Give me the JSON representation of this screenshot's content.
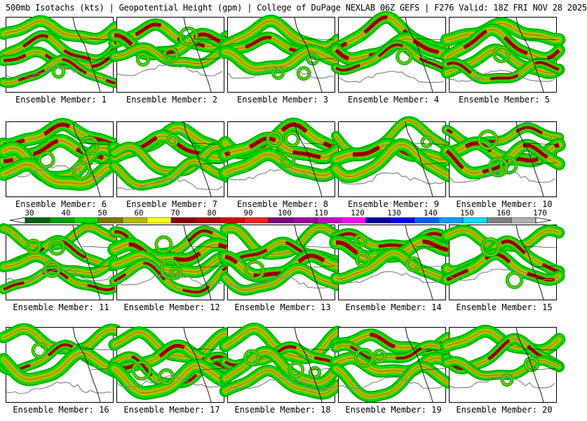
{
  "title": "500mb Isotachs (kts) | Geopotential Height (gpm) | College of DuPage NEXLAB   06Z GEFS | F276 Valid: 18Z FRI NOV 28 2025",
  "panels": [
    {
      "label": "Ensemble Member: 1"
    },
    {
      "label": "Ensemble Member: 2"
    },
    {
      "label": "Ensemble Member: 3"
    },
    {
      "label": "Ensemble Member: 4"
    },
    {
      "label": "Ensemble Member: 5"
    },
    {
      "label": "Ensemble Member: 6"
    },
    {
      "label": "Ensemble Member: 7"
    },
    {
      "label": "Ensemble Member: 8"
    },
    {
      "label": "Ensemble Member: 9"
    },
    {
      "label": "Ensemble Member: 10"
    },
    {
      "label": "Ensemble Member: 11"
    },
    {
      "label": "Ensemble Member: 12"
    },
    {
      "label": "Ensemble Member: 13"
    },
    {
      "label": "Ensemble Member: 14"
    },
    {
      "label": "Ensemble Member: 15"
    },
    {
      "label": "Ensemble Member: 16"
    },
    {
      "label": "Ensemble Member: 17"
    },
    {
      "label": "Ensemble Member: 18"
    },
    {
      "label": "Ensemble Member: 19"
    },
    {
      "label": "Ensemble Member: 20"
    }
  ],
  "colorbar": {
    "labels": [
      "30",
      "40",
      "50",
      "60",
      "70",
      "80",
      "90",
      "100",
      "110",
      "120",
      "130",
      "140",
      "150",
      "160",
      "170"
    ],
    "colors": [
      "#006400",
      "#00a000",
      "#00dd00",
      "#7a7a00",
      "#b8b800",
      "#ffff00",
      "#8b0000",
      "#b00000",
      "#d80000",
      "#ff1c1c",
      "#7f007f",
      "#a000a0",
      "#c800c8",
      "#ff00ff",
      "#0000a0",
      "#0000ff",
      "#0060ff",
      "#00a0ff",
      "#00ddff",
      "#808080",
      "#b0b0b0"
    ]
  }
}
